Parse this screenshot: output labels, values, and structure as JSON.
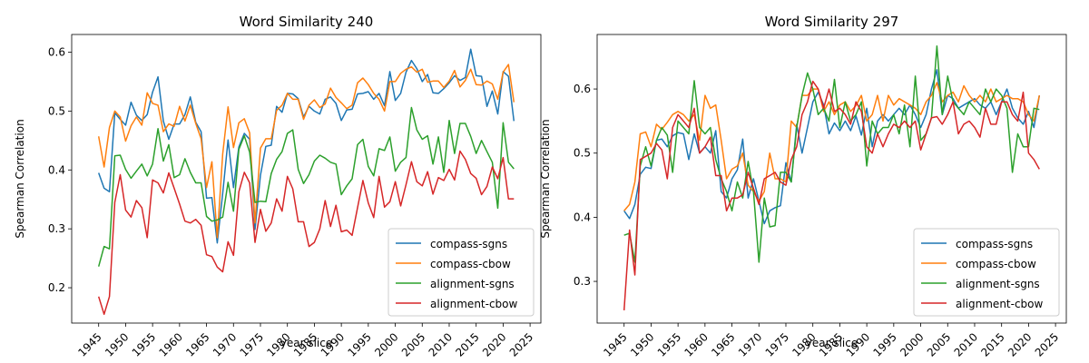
{
  "chart_data": [
    {
      "type": "line",
      "title": "Word Similarity 240",
      "xlabel": "year slice",
      "ylabel": "Spearman Correlation",
      "xlim": [
        1940,
        2027
      ],
      "ylim": [
        0.14,
        0.63
      ],
      "xticks": [
        1945,
        1950,
        1955,
        1960,
        1965,
        1970,
        1975,
        1980,
        1985,
        1990,
        1995,
        2000,
        2005,
        2010,
        2015,
        2020,
        2025
      ],
      "yticks": [
        0.2,
        0.3,
        0.4,
        0.5,
        0.6
      ],
      "legend_position": "lower-right",
      "grid": false,
      "x": [
        1945,
        1946,
        1947,
        1948,
        1949,
        1950,
        1951,
        1952,
        1953,
        1954,
        1955,
        1956,
        1957,
        1958,
        1959,
        1960,
        1961,
        1962,
        1963,
        1964,
        1965,
        1966,
        1967,
        1968,
        1969,
        1970,
        1971,
        1972,
        1973,
        1974,
        1975,
        1976,
        1977,
        1978,
        1979,
        1980,
        1981,
        1982,
        1983,
        1984,
        1985,
        1986,
        1987,
        1988,
        1989,
        1990,
        1991,
        1992,
        1993,
        1994,
        1995,
        1996,
        1997,
        1998,
        1999,
        2000,
        2001,
        2002,
        2003,
        2004,
        2005,
        2006,
        2007,
        2008,
        2009,
        2010,
        2011,
        2012,
        2013,
        2014,
        2015,
        2016,
        2017,
        2018,
        2019,
        2020,
        2021,
        2022
      ],
      "series": [
        {
          "name": "compass-sgns",
          "color": "#1f77b4",
          "values": [
            0.395,
            0.369,
            0.363,
            0.497,
            0.486,
            0.476,
            0.515,
            0.493,
            0.484,
            0.494,
            0.532,
            0.558,
            0.483,
            0.452,
            0.478,
            0.478,
            0.494,
            0.524,
            0.481,
            0.465,
            0.352,
            0.353,
            0.276,
            0.36,
            0.451,
            0.37,
            0.439,
            0.462,
            0.452,
            0.299,
            0.391,
            0.44,
            0.442,
            0.508,
            0.498,
            0.53,
            0.529,
            0.521,
            0.49,
            0.508,
            0.5,
            0.495,
            0.52,
            0.524,
            0.513,
            0.484,
            0.502,
            0.503,
            0.529,
            0.53,
            0.533,
            0.52,
            0.53,
            0.509,
            0.567,
            0.518,
            0.53,
            0.566,
            0.586,
            0.572,
            0.55,
            0.562,
            0.531,
            0.53,
            0.538,
            0.548,
            0.56,
            0.552,
            0.557,
            0.605,
            0.56,
            0.559,
            0.508,
            0.534,
            0.495,
            0.567,
            0.559,
            0.483
          ]
        },
        {
          "name": "compass-cbow",
          "color": "#ff7f0e",
          "values": [
            0.457,
            0.405,
            0.472,
            0.5,
            0.49,
            0.449,
            0.475,
            0.49,
            0.476,
            0.531,
            0.513,
            0.51,
            0.465,
            0.478,
            0.474,
            0.508,
            0.483,
            0.51,
            0.479,
            0.453,
            0.37,
            0.414,
            0.285,
            0.427,
            0.507,
            0.438,
            0.48,
            0.487,
            0.463,
            0.31,
            0.437,
            0.453,
            0.453,
            0.501,
            0.51,
            0.53,
            0.52,
            0.52,
            0.486,
            0.51,
            0.519,
            0.506,
            0.512,
            0.539,
            0.523,
            0.514,
            0.504,
            0.51,
            0.548,
            0.556,
            0.545,
            0.53,
            0.52,
            0.5,
            0.55,
            0.55,
            0.564,
            0.571,
            0.575,
            0.566,
            0.571,
            0.549,
            0.551,
            0.551,
            0.54,
            0.551,
            0.569,
            0.541,
            0.552,
            0.571,
            0.545,
            0.544,
            0.551,
            0.546,
            0.52,
            0.566,
            0.579,
            0.515
          ]
        },
        {
          "name": "alignment-sgns",
          "color": "#2ca02c",
          "values": [
            0.236,
            0.27,
            0.266,
            0.424,
            0.425,
            0.401,
            0.386,
            0.398,
            0.41,
            0.39,
            0.41,
            0.47,
            0.415,
            0.443,
            0.387,
            0.392,
            0.419,
            0.396,
            0.378,
            0.378,
            0.321,
            0.313,
            0.315,
            0.32,
            0.379,
            0.33,
            0.435,
            0.458,
            0.43,
            0.345,
            0.347,
            0.346,
            0.394,
            0.418,
            0.431,
            0.462,
            0.468,
            0.401,
            0.377,
            0.392,
            0.415,
            0.425,
            0.42,
            0.413,
            0.41,
            0.358,
            0.373,
            0.385,
            0.443,
            0.452,
            0.406,
            0.39,
            0.436,
            0.433,
            0.456,
            0.398,
            0.413,
            0.421,
            0.506,
            0.468,
            0.452,
            0.458,
            0.41,
            0.456,
            0.396,
            0.484,
            0.428,
            0.479,
            0.479,
            0.457,
            0.428,
            0.45,
            0.431,
            0.413,
            0.335,
            0.48,
            0.413,
            0.402
          ]
        },
        {
          "name": "alignment-cbow",
          "color": "#d62728",
          "values": [
            0.185,
            0.155,
            0.185,
            0.345,
            0.392,
            0.332,
            0.32,
            0.348,
            0.336,
            0.285,
            0.383,
            0.378,
            0.361,
            0.395,
            0.369,
            0.342,
            0.313,
            0.31,
            0.316,
            0.306,
            0.256,
            0.253,
            0.235,
            0.227,
            0.278,
            0.255,
            0.363,
            0.396,
            0.378,
            0.277,
            0.333,
            0.296,
            0.31,
            0.351,
            0.33,
            0.389,
            0.368,
            0.312,
            0.312,
            0.27,
            0.277,
            0.3,
            0.348,
            0.304,
            0.34,
            0.295,
            0.298,
            0.289,
            0.336,
            0.382,
            0.344,
            0.319,
            0.389,
            0.337,
            0.346,
            0.38,
            0.339,
            0.375,
            0.414,
            0.38,
            0.373,
            0.397,
            0.359,
            0.387,
            0.382,
            0.401,
            0.383,
            0.432,
            0.418,
            0.394,
            0.386,
            0.358,
            0.372,
            0.405,
            0.385,
            0.421,
            0.351,
            0.351
          ]
        }
      ]
    },
    {
      "type": "line",
      "title": "Word Similarity 297",
      "xlabel": "year slice",
      "ylabel": "Spearman Correlation",
      "xlim": [
        1940,
        2027
      ],
      "ylim": [
        0.235,
        0.685
      ],
      "xticks": [
        1945,
        1950,
        1955,
        1960,
        1965,
        1970,
        1975,
        1980,
        1985,
        1990,
        1995,
        2000,
        2005,
        2010,
        2015,
        2020,
        2025
      ],
      "yticks": [
        0.3,
        0.4,
        0.5,
        0.6
      ],
      "legend_position": "lower-right",
      "grid": false,
      "x": [
        1945,
        1946,
        1947,
        1948,
        1949,
        1950,
        1951,
        1952,
        1953,
        1954,
        1955,
        1956,
        1957,
        1958,
        1959,
        1960,
        1961,
        1962,
        1963,
        1964,
        1965,
        1966,
        1967,
        1968,
        1969,
        1970,
        1971,
        1972,
        1973,
        1974,
        1975,
        1976,
        1977,
        1978,
        1979,
        1980,
        1981,
        1982,
        1983,
        1984,
        1985,
        1986,
        1987,
        1988,
        1989,
        1990,
        1991,
        1992,
        1993,
        1994,
        1995,
        1996,
        1997,
        1998,
        1999,
        2000,
        2001,
        2002,
        2003,
        2004,
        2005,
        2006,
        2007,
        2008,
        2009,
        2010,
        2011,
        2012,
        2013,
        2014,
        2015,
        2016,
        2017,
        2018,
        2019,
        2020,
        2021,
        2022
      ],
      "series": [
        {
          "name": "compass-sgns",
          "color": "#1f77b4",
          "values": [
            0.41,
            0.398,
            0.42,
            0.467,
            0.478,
            0.476,
            0.52,
            0.522,
            0.51,
            0.527,
            0.532,
            0.53,
            0.49,
            0.53,
            0.5,
            0.51,
            0.5,
            0.535,
            0.44,
            0.43,
            0.46,
            0.474,
            0.522,
            0.43,
            0.46,
            0.425,
            0.39,
            0.41,
            0.415,
            0.418,
            0.485,
            0.455,
            0.545,
            0.5,
            0.54,
            0.58,
            0.595,
            0.575,
            0.53,
            0.547,
            0.535,
            0.55,
            0.535,
            0.558,
            0.528,
            0.57,
            0.51,
            0.55,
            0.56,
            0.55,
            0.56,
            0.57,
            0.56,
            0.575,
            0.56,
            0.54,
            0.56,
            0.6,
            0.63,
            0.56,
            0.59,
            0.585,
            0.57,
            0.575,
            0.58,
            0.585,
            0.575,
            0.57,
            0.58,
            0.56,
            0.58,
            0.6,
            0.57,
            0.555,
            0.545,
            0.565,
            0.54,
            0.59
          ]
        },
        {
          "name": "compass-cbow",
          "color": "#ff7f0e",
          "values": [
            0.41,
            0.42,
            0.455,
            0.53,
            0.533,
            0.51,
            0.545,
            0.537,
            0.548,
            0.56,
            0.565,
            0.56,
            0.55,
            0.56,
            0.52,
            0.59,
            0.57,
            0.575,
            0.52,
            0.46,
            0.475,
            0.48,
            0.5,
            0.45,
            0.44,
            0.425,
            0.44,
            0.5,
            0.46,
            0.46,
            0.455,
            0.55,
            0.54,
            0.59,
            0.59,
            0.6,
            0.6,
            0.565,
            0.58,
            0.56,
            0.575,
            0.58,
            0.565,
            0.574,
            0.59,
            0.55,
            0.56,
            0.59,
            0.55,
            0.59,
            0.575,
            0.585,
            0.58,
            0.575,
            0.57,
            0.56,
            0.58,
            0.59,
            0.61,
            0.58,
            0.59,
            0.595,
            0.58,
            0.605,
            0.59,
            0.58,
            0.59,
            0.58,
            0.6,
            0.58,
            0.585,
            0.59,
            0.585,
            0.585,
            0.58,
            0.56,
            0.55,
            0.59
          ]
        },
        {
          "name": "alignment-sgns",
          "color": "#2ca02c",
          "values": [
            0.372,
            0.375,
            0.33,
            0.48,
            0.51,
            0.48,
            0.52,
            0.54,
            0.528,
            0.47,
            0.55,
            0.54,
            0.53,
            0.613,
            0.54,
            0.53,
            0.54,
            0.49,
            0.46,
            0.44,
            0.41,
            0.455,
            0.43,
            0.487,
            0.44,
            0.33,
            0.43,
            0.385,
            0.387,
            0.47,
            0.47,
            0.455,
            0.54,
            0.59,
            0.625,
            0.6,
            0.56,
            0.57,
            0.55,
            0.615,
            0.54,
            0.58,
            0.55,
            0.56,
            0.58,
            0.48,
            0.55,
            0.53,
            0.54,
            0.54,
            0.56,
            0.53,
            0.575,
            0.51,
            0.62,
            0.52,
            0.53,
            0.555,
            0.667,
            0.56,
            0.62,
            0.58,
            0.57,
            0.56,
            0.58,
            0.57,
            0.56,
            0.6,
            0.58,
            0.6,
            0.59,
            0.57,
            0.47,
            0.53,
            0.51,
            0.51,
            0.57,
            0.568
          ]
        },
        {
          "name": "alignment-cbow",
          "color": "#d62728",
          "values": [
            0.255,
            0.38,
            0.31,
            0.49,
            0.495,
            0.5,
            0.515,
            0.505,
            0.46,
            0.54,
            0.56,
            0.55,
            0.54,
            0.57,
            0.5,
            0.51,
            0.525,
            0.465,
            0.465,
            0.41,
            0.43,
            0.43,
            0.435,
            0.47,
            0.445,
            0.42,
            0.46,
            0.465,
            0.47,
            0.455,
            0.45,
            0.49,
            0.51,
            0.56,
            0.58,
            0.612,
            0.6,
            0.57,
            0.6,
            0.565,
            0.57,
            0.56,
            0.545,
            0.58,
            0.565,
            0.51,
            0.5,
            0.53,
            0.51,
            0.53,
            0.545,
            0.54,
            0.55,
            0.54,
            0.55,
            0.505,
            0.53,
            0.555,
            0.557,
            0.545,
            0.56,
            0.58,
            0.53,
            0.545,
            0.55,
            0.54,
            0.525,
            0.57,
            0.545,
            0.545,
            0.58,
            0.58,
            0.56,
            0.55,
            0.595,
            0.5,
            0.49,
            0.475
          ]
        }
      ]
    }
  ]
}
